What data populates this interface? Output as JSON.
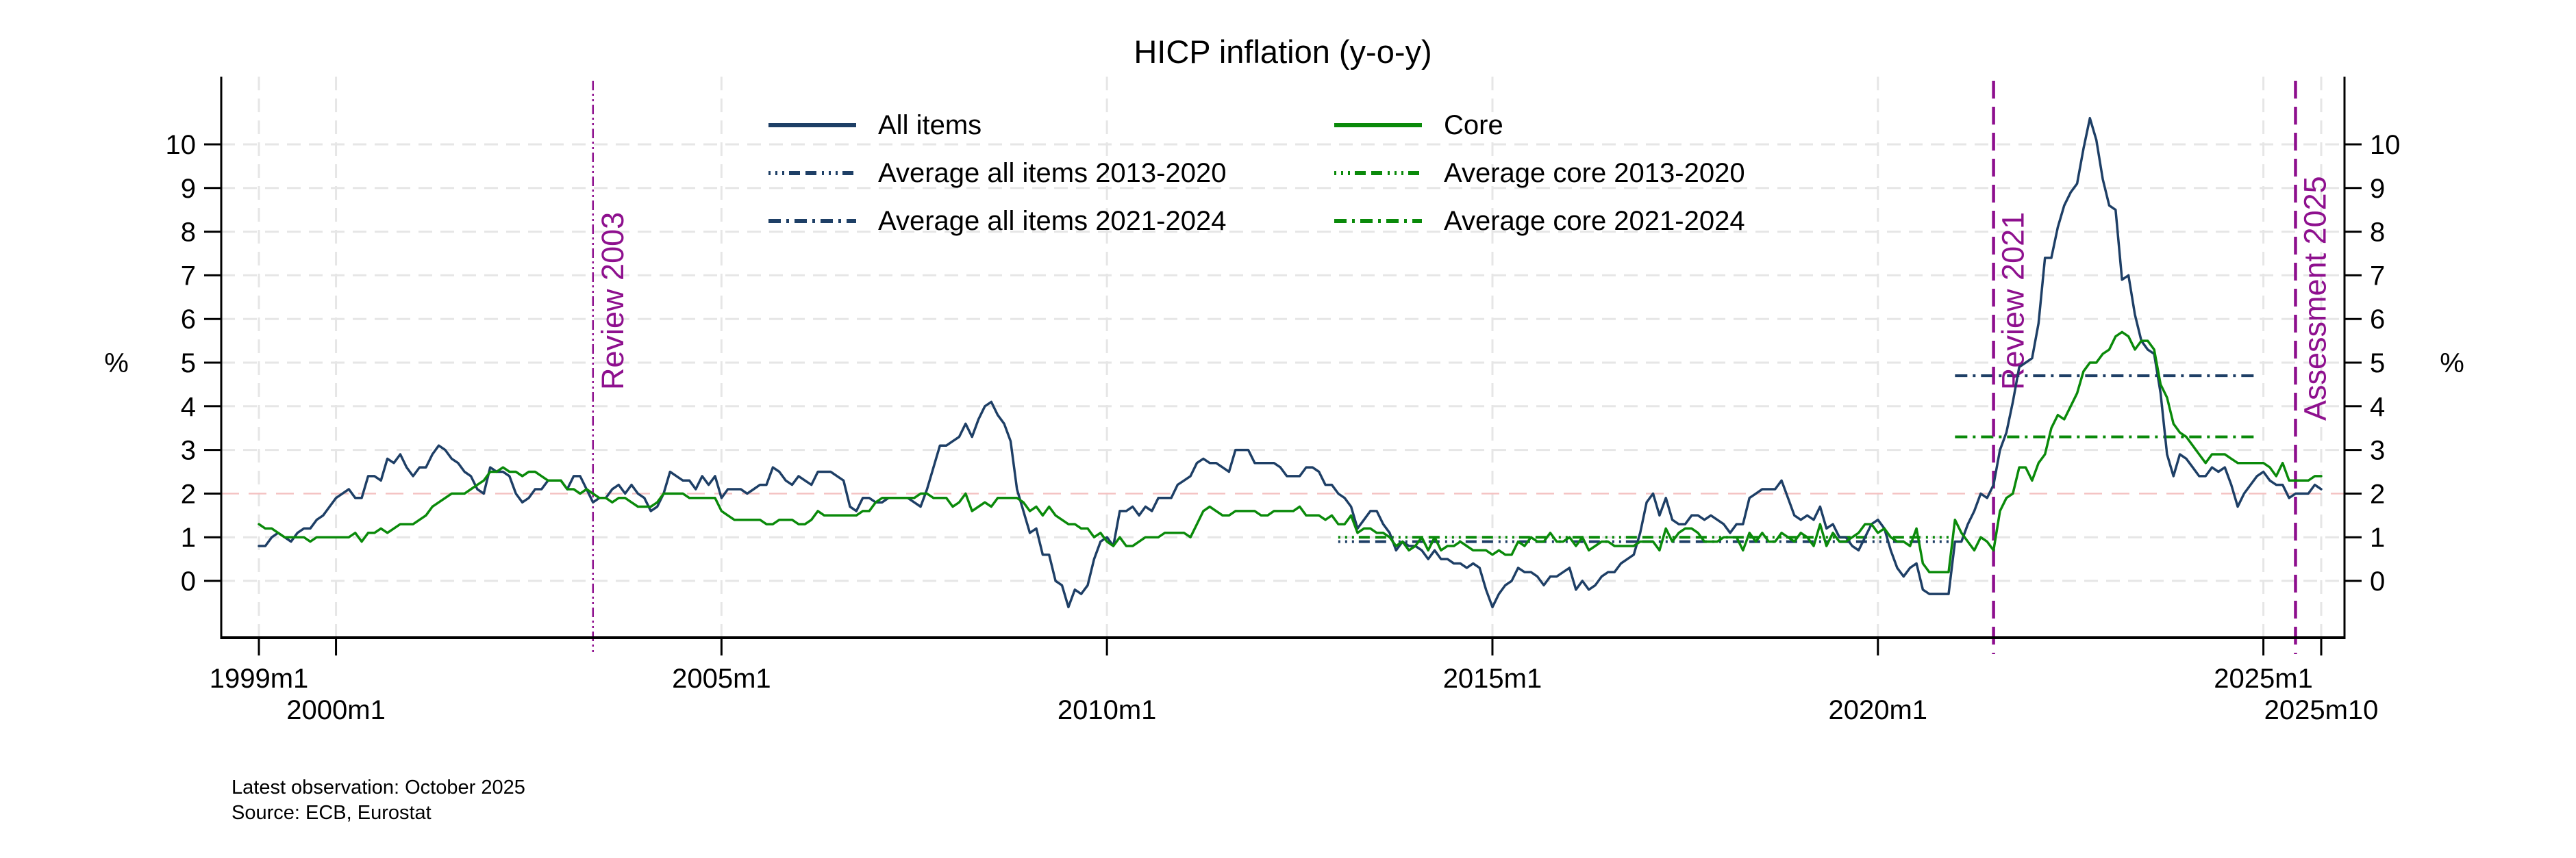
{
  "title": "HICP inflation (y-o-y)",
  "axis": {
    "y_label_left": "%",
    "y_label_right": "%"
  },
  "footer": {
    "latest_observation": "Latest observation: October 2025",
    "source": "Source: ECB, Eurostat"
  },
  "colors": {
    "all_items": "#1e3f66",
    "core": "#0a8a0a",
    "event": "#8e108e",
    "target": "#f4c2c2",
    "grid": "#e6e6e6",
    "axis": "#000000",
    "text": "#000000"
  },
  "legend": {
    "columns": [
      {
        "items": [
          {
            "label": "All items",
            "color_key": "all_items",
            "pattern": "solid"
          },
          {
            "label": "Average all items 2013-2020",
            "color_key": "all_items",
            "pattern": "avg1320"
          },
          {
            "label": "Average all items 2021-2024",
            "color_key": "all_items",
            "pattern": "avg2124"
          }
        ]
      },
      {
        "items": [
          {
            "label": "Core",
            "color_key": "core",
            "pattern": "solid"
          },
          {
            "label": "Average core 2013-2020",
            "color_key": "core",
            "pattern": "avg1320"
          },
          {
            "label": "Average core 2021-2024",
            "color_key": "core",
            "pattern": "avg2124"
          }
        ]
      }
    ]
  },
  "chart_data": {
    "type": "line",
    "title": "HICP inflation (y-o-y)",
    "ylabel": "%",
    "x_start": "1999m1",
    "x_end": "2025m10",
    "ylim": [
      -1.3,
      11.5
    ],
    "grid": true,
    "target_line_value": 2,
    "y_ticks": [
      0,
      1,
      2,
      3,
      4,
      5,
      6,
      7,
      8,
      9,
      10
    ],
    "x_ticks": [
      {
        "label": "1999m1",
        "row": 1
      },
      {
        "label": "2000m1",
        "row": 2
      },
      {
        "label": "2005m1",
        "row": 1
      },
      {
        "label": "2010m1",
        "row": 2
      },
      {
        "label": "2015m1",
        "row": 1
      },
      {
        "label": "2020m1",
        "row": 2
      },
      {
        "label": "2025m1",
        "row": 1
      },
      {
        "label": "2025m10",
        "row": 2
      }
    ],
    "series": [
      {
        "name": "All items",
        "color_key": "all_items",
        "start": "1999m1",
        "values": [
          0.8,
          0.8,
          1.0,
          1.1,
          1.0,
          0.9,
          1.1,
          1.2,
          1.2,
          1.4,
          1.5,
          1.7,
          1.9,
          2.0,
          2.1,
          1.9,
          1.9,
          2.4,
          2.4,
          2.3,
          2.8,
          2.7,
          2.9,
          2.6,
          2.4,
          2.6,
          2.6,
          2.9,
          3.1,
          3.0,
          2.8,
          2.7,
          2.5,
          2.4,
          2.1,
          2.0,
          2.6,
          2.5,
          2.5,
          2.4,
          2.0,
          1.8,
          1.9,
          2.1,
          2.1,
          2.3,
          2.3,
          2.3,
          2.1,
          2.4,
          2.4,
          2.1,
          1.8,
          1.9,
          1.9,
          2.1,
          2.2,
          2.0,
          2.2,
          2.0,
          1.9,
          1.6,
          1.7,
          2.0,
          2.5,
          2.4,
          2.3,
          2.3,
          2.1,
          2.4,
          2.2,
          2.4,
          1.9,
          2.1,
          2.1,
          2.1,
          2.0,
          2.1,
          2.2,
          2.2,
          2.6,
          2.5,
          2.3,
          2.2,
          2.4,
          2.3,
          2.2,
          2.5,
          2.5,
          2.5,
          2.4,
          2.3,
          1.7,
          1.6,
          1.9,
          1.9,
          1.8,
          1.8,
          1.9,
          1.9,
          1.9,
          1.9,
          1.8,
          1.7,
          2.1,
          2.6,
          3.1,
          3.1,
          3.2,
          3.3,
          3.6,
          3.3,
          3.7,
          4.0,
          4.1,
          3.8,
          3.6,
          3.2,
          2.1,
          1.6,
          1.1,
          1.2,
          0.6,
          0.6,
          0.0,
          -0.1,
          -0.6,
          -0.2,
          -0.3,
          -0.1,
          0.5,
          0.9,
          1.0,
          0.8,
          1.6,
          1.6,
          1.7,
          1.5,
          1.7,
          1.6,
          1.9,
          1.9,
          1.9,
          2.2,
          2.3,
          2.4,
          2.7,
          2.8,
          2.7,
          2.7,
          2.6,
          2.5,
          3.0,
          3.0,
          3.0,
          2.7,
          2.7,
          2.7,
          2.7,
          2.6,
          2.4,
          2.4,
          2.4,
          2.6,
          2.6,
          2.5,
          2.2,
          2.2,
          2.0,
          1.9,
          1.7,
          1.2,
          1.4,
          1.6,
          1.6,
          1.3,
          1.1,
          0.7,
          0.9,
          0.8,
          0.8,
          0.7,
          0.5,
          0.7,
          0.5,
          0.5,
          0.4,
          0.4,
          0.3,
          0.4,
          0.3,
          -0.2,
          -0.6,
          -0.3,
          -0.1,
          0.0,
          0.3,
          0.2,
          0.2,
          0.1,
          -0.1,
          0.1,
          0.1,
          0.2,
          0.3,
          -0.2,
          0.0,
          -0.2,
          -0.1,
          0.1,
          0.2,
          0.2,
          0.4,
          0.5,
          0.6,
          1.1,
          1.8,
          2.0,
          1.5,
          1.9,
          1.4,
          1.3,
          1.3,
          1.5,
          1.5,
          1.4,
          1.5,
          1.4,
          1.3,
          1.1,
          1.3,
          1.3,
          1.9,
          2.0,
          2.1,
          2.1,
          2.1,
          2.3,
          1.9,
          1.5,
          1.4,
          1.5,
          1.4,
          1.7,
          1.2,
          1.3,
          1.0,
          1.0,
          0.8,
          0.7,
          1.0,
          1.3,
          1.4,
          1.2,
          0.7,
          0.3,
          0.1,
          0.3,
          0.4,
          -0.2,
          -0.3,
          -0.3,
          -0.3,
          -0.3,
          0.9,
          0.9,
          1.3,
          1.6,
          2.0,
          1.9,
          2.2,
          3.0,
          3.4,
          4.1,
          4.9,
          5.0,
          5.1,
          5.9,
          7.4,
          7.4,
          8.1,
          8.6,
          8.9,
          9.1,
          9.9,
          10.6,
          10.1,
          9.2,
          8.6,
          8.5,
          6.9,
          7.0,
          6.1,
          5.5,
          5.3,
          5.2,
          4.3,
          2.9,
          2.4,
          2.9,
          2.8,
          2.6,
          2.4,
          2.4,
          2.6,
          2.5,
          2.6,
          2.2,
          1.7,
          2.0,
          2.2,
          2.4,
          2.5,
          2.3,
          2.2,
          2.2,
          1.9,
          2.0,
          2.0,
          2.0,
          2.2,
          2.1
        ]
      },
      {
        "name": "Core",
        "color_key": "core",
        "start": "1999m1",
        "values": [
          1.3,
          1.2,
          1.2,
          1.1,
          1.0,
          1.0,
          1.0,
          1.0,
          0.9,
          1.0,
          1.0,
          1.0,
          1.0,
          1.0,
          1.0,
          1.1,
          0.9,
          1.1,
          1.1,
          1.2,
          1.1,
          1.2,
          1.3,
          1.3,
          1.3,
          1.4,
          1.5,
          1.7,
          1.8,
          1.9,
          2.0,
          2.0,
          2.0,
          2.1,
          2.2,
          2.3,
          2.5,
          2.5,
          2.6,
          2.5,
          2.5,
          2.4,
          2.5,
          2.5,
          2.4,
          2.3,
          2.3,
          2.3,
          2.1,
          2.1,
          2.0,
          2.1,
          2.0,
          1.9,
          1.9,
          1.8,
          1.9,
          1.9,
          1.8,
          1.7,
          1.7,
          1.7,
          1.8,
          2.0,
          2.0,
          2.0,
          2.0,
          1.9,
          1.9,
          1.9,
          1.9,
          1.9,
          1.6,
          1.5,
          1.4,
          1.4,
          1.4,
          1.4,
          1.4,
          1.3,
          1.3,
          1.4,
          1.4,
          1.4,
          1.3,
          1.3,
          1.4,
          1.6,
          1.5,
          1.5,
          1.5,
          1.5,
          1.5,
          1.5,
          1.6,
          1.6,
          1.8,
          1.9,
          1.9,
          1.9,
          1.9,
          1.9,
          1.9,
          2.0,
          2.0,
          1.9,
          1.9,
          1.9,
          1.7,
          1.8,
          2.0,
          1.6,
          1.7,
          1.8,
          1.7,
          1.9,
          1.9,
          1.9,
          1.9,
          1.8,
          1.6,
          1.7,
          1.5,
          1.7,
          1.5,
          1.4,
          1.3,
          1.3,
          1.2,
          1.2,
          1.0,
          1.1,
          0.9,
          0.8,
          1.0,
          0.8,
          0.8,
          0.9,
          1.0,
          1.0,
          1.0,
          1.1,
          1.1,
          1.1,
          1.1,
          1.0,
          1.3,
          1.6,
          1.7,
          1.6,
          1.5,
          1.5,
          1.6,
          1.6,
          1.6,
          1.6,
          1.5,
          1.5,
          1.6,
          1.6,
          1.6,
          1.6,
          1.7,
          1.5,
          1.5,
          1.5,
          1.4,
          1.5,
          1.3,
          1.3,
          1.5,
          1.1,
          1.2,
          1.2,
          1.1,
          1.1,
          1.0,
          0.8,
          0.9,
          0.7,
          0.8,
          1.0,
          0.7,
          1.0,
          0.7,
          0.8,
          0.8,
          0.9,
          0.8,
          0.7,
          0.7,
          0.7,
          0.6,
          0.7,
          0.6,
          0.6,
          0.9,
          0.8,
          1.0,
          0.9,
          0.9,
          1.1,
          0.9,
          0.9,
          1.0,
          0.8,
          1.0,
          0.7,
          0.8,
          0.9,
          0.9,
          0.8,
          0.8,
          0.8,
          0.8,
          0.9,
          0.9,
          0.9,
          0.7,
          1.2,
          0.9,
          1.1,
          1.2,
          1.2,
          1.1,
          0.9,
          0.9,
          0.9,
          1.0,
          1.0,
          1.0,
          0.7,
          1.1,
          0.9,
          1.1,
          0.9,
          0.9,
          1.1,
          1.0,
          0.9,
          1.1,
          1.0,
          0.8,
          1.3,
          0.8,
          1.1,
          0.9,
          0.9,
          1.0,
          1.1,
          1.3,
          1.3,
          1.1,
          1.2,
          1.0,
          0.9,
          0.9,
          0.8,
          1.2,
          0.4,
          0.2,
          0.2,
          0.2,
          0.2,
          1.4,
          1.1,
          0.9,
          0.7,
          1.0,
          0.9,
          0.7,
          1.6,
          1.9,
          2.0,
          2.6,
          2.6,
          2.3,
          2.7,
          2.9,
          3.5,
          3.8,
          3.7,
          4.0,
          4.3,
          4.8,
          5.0,
          5.0,
          5.2,
          5.3,
          5.6,
          5.7,
          5.6,
          5.3,
          5.5,
          5.5,
          5.3,
          4.5,
          4.2,
          3.6,
          3.4,
          3.3,
          3.1,
          2.9,
          2.7,
          2.9,
          2.9,
          2.9,
          2.8,
          2.7,
          2.7,
          2.7,
          2.7,
          2.7,
          2.6,
          2.4,
          2.7,
          2.3,
          2.3,
          2.3,
          2.3,
          2.4,
          2.4
        ]
      }
    ],
    "average_lines": [
      {
        "name": "Average all items 2013-2020",
        "value": 0.9,
        "from": "2013m1",
        "to": "2020m12",
        "color_key": "all_items",
        "pattern": "avg1320"
      },
      {
        "name": "Average core 2013-2020",
        "value": 1.0,
        "from": "2013m1",
        "to": "2020m12",
        "color_key": "core",
        "pattern": "avg1320"
      },
      {
        "name": "Average all items 2021-2024",
        "value": 4.7,
        "from": "2021m1",
        "to": "2024m12",
        "color_key": "all_items",
        "pattern": "avg2124"
      },
      {
        "name": "Average core 2021-2024",
        "value": 3.3,
        "from": "2021m1",
        "to": "2024m12",
        "color_key": "core",
        "pattern": "avg2124"
      }
    ],
    "events": [
      {
        "label": "Review 2003",
        "date": "2003m5",
        "style": "thin"
      },
      {
        "label": "Review 2021",
        "date": "2021m7",
        "style": "thick"
      },
      {
        "label": "Assessment 2025",
        "date": "2025m6",
        "style": "thick"
      }
    ],
    "legend_position": "top-inside"
  }
}
